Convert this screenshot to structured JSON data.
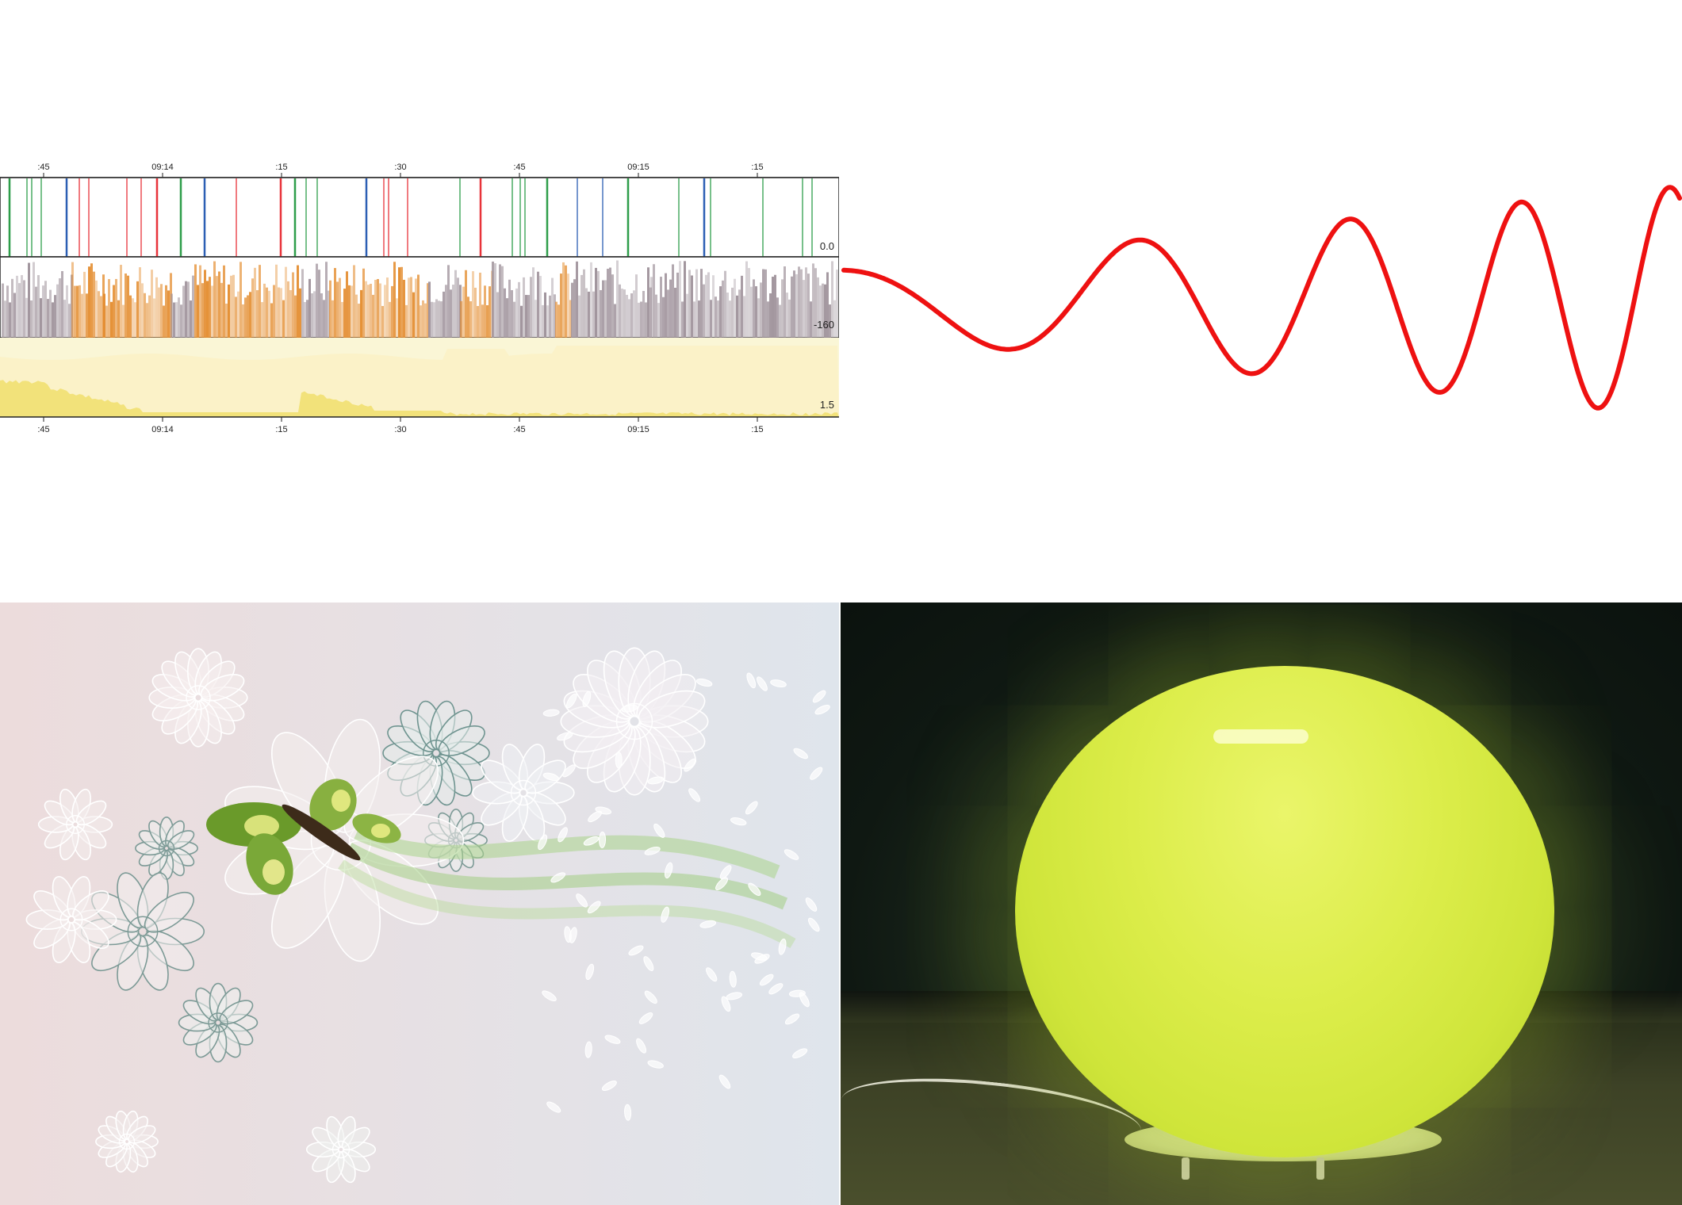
{
  "timeline": {
    "top_ticks": [
      ":45",
      "09:14",
      ":15",
      ":30",
      ":45",
      "09:15",
      ":15"
    ],
    "bottom_ticks": [
      ":45",
      "09:14",
      ":15",
      ":30",
      ":45",
      "09:15",
      ":15"
    ],
    "track_labels": {
      "lines_track": "0.0",
      "bars_track": "-160",
      "area_track": "1.5"
    },
    "colors": {
      "red": "#e8333a",
      "green": "#2e9e4a",
      "blue": "#2c5fb4",
      "orange": "#e38b2c",
      "mauve": "#9c8f98",
      "yellow": "#f6ecb0"
    }
  },
  "wave": {
    "color": "#ee1111"
  },
  "floral": {
    "leaf_color": "#7fae3c",
    "petal_color": "#ffffff"
  },
  "lamp": {
    "glow_color": "#d6ec3f"
  }
}
